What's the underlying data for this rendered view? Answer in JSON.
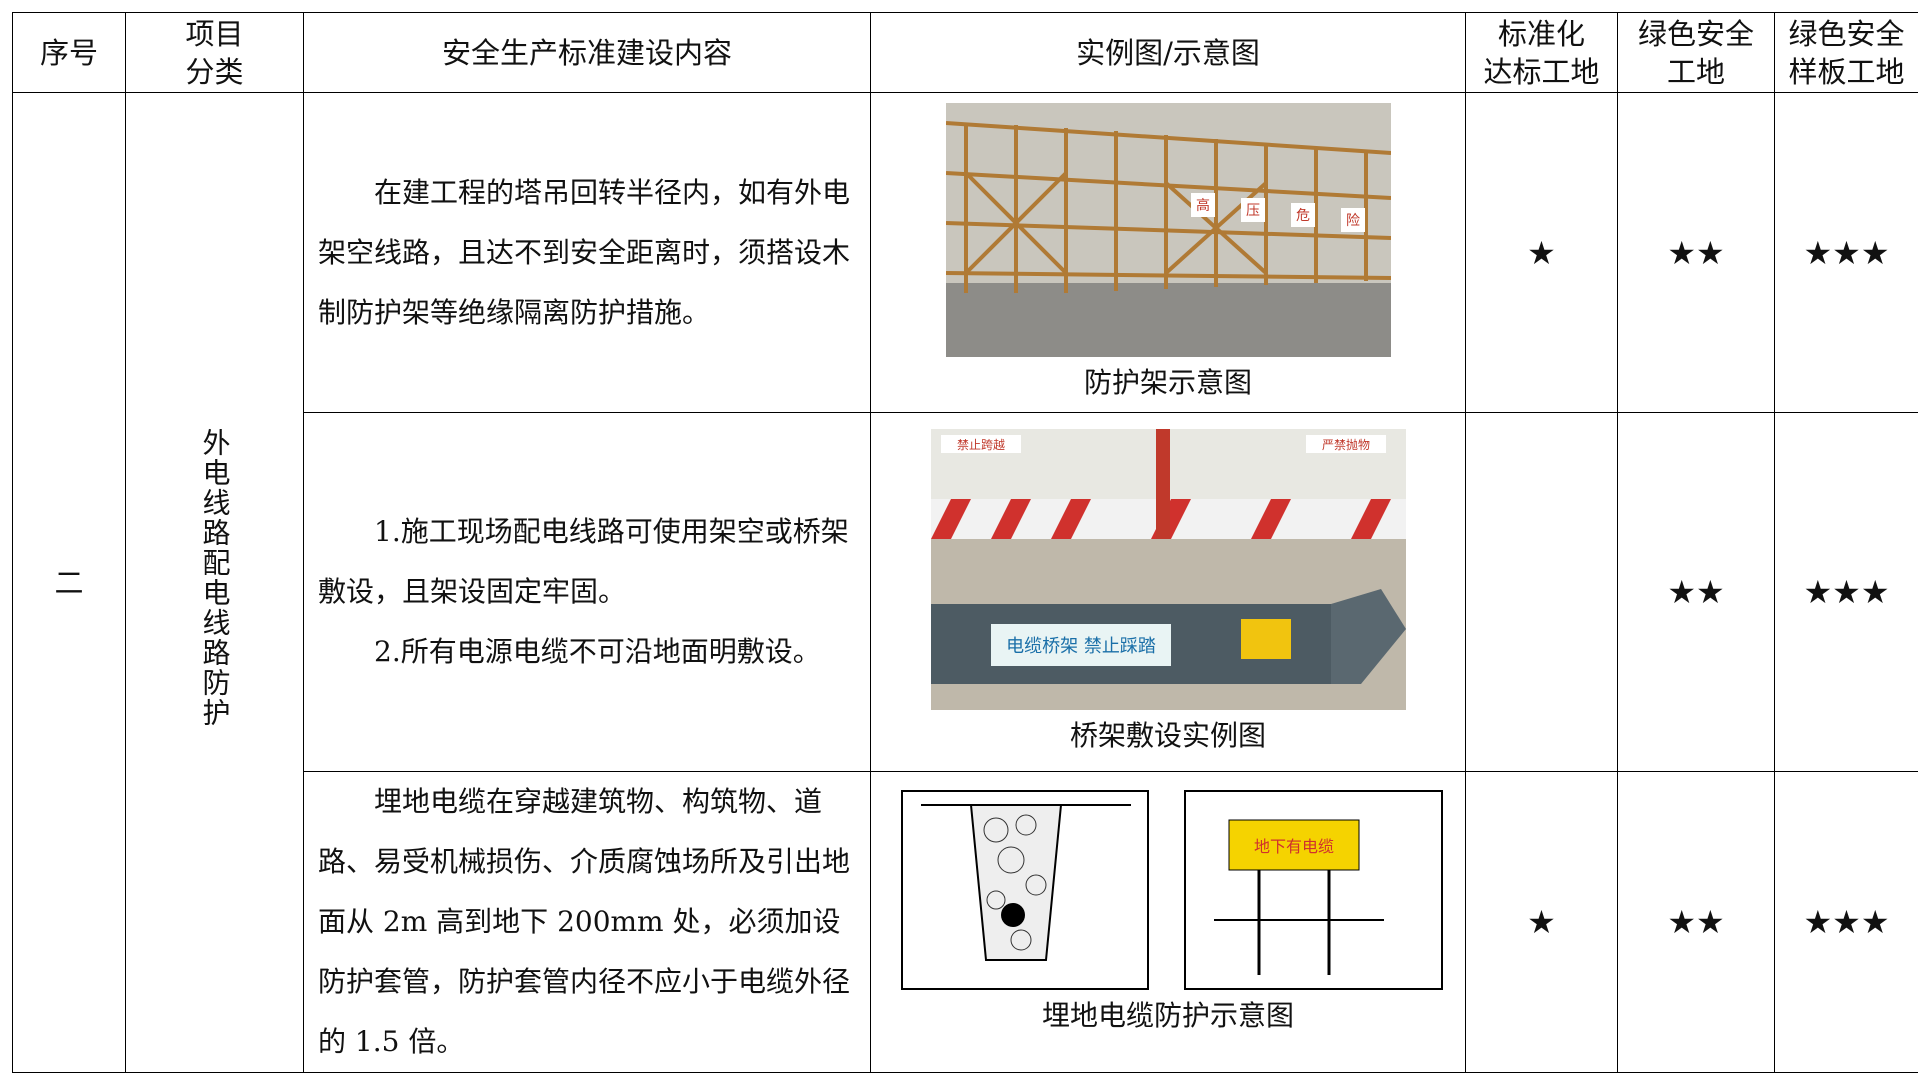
{
  "header": {
    "no": "序号",
    "category": [
      "项目",
      "分类"
    ],
    "content": "安全生产标准建设内容",
    "figure": "实例图/示意图",
    "level1": [
      "标准化",
      "达标工地"
    ],
    "level2": [
      "绿色安全",
      "工地"
    ],
    "level3": [
      "绿色安全",
      "样板工地"
    ]
  },
  "section": {
    "no": "二",
    "category": "外电线路配电线路防护"
  },
  "rows": [
    {
      "content": [
        "在建工程的塔吊回转半径内，如有外电架空线路，且达不到安全距离时，须搭设木制防护架等绝缘隔离防护措施。"
      ],
      "signs": [
        "高",
        "压",
        "危",
        "险"
      ],
      "caption": "防护架示意图",
      "level1": "★",
      "level2": "★★",
      "level3": "★★★"
    },
    {
      "content": [
        "1.施工现场配电线路可使用架空或桥架敷设，且架设固定牢固。",
        "2.所有电源电缆不可沿地面明敷设。"
      ],
      "signs": [
        "禁止跨越",
        "严禁抛物",
        "电缆桥架 禁止踩踏"
      ],
      "caption": "桥架敷设实例图",
      "level2": "★★",
      "level3": "★★★"
    },
    {
      "content": [
        "埋地电缆在穿越建筑物、构筑物、道路、易受机械损伤、介质腐蚀场所及引出地面从 2m 高到地下 200mm 处，必须加设防护套管，防护套管内径不应小于电缆外径的 1.5 倍。"
      ],
      "signs": [
        "地下有电缆"
      ],
      "caption": "埋地电缆防护示意图",
      "level1": "★",
      "level2": "★★",
      "level3": "★★★"
    }
  ]
}
